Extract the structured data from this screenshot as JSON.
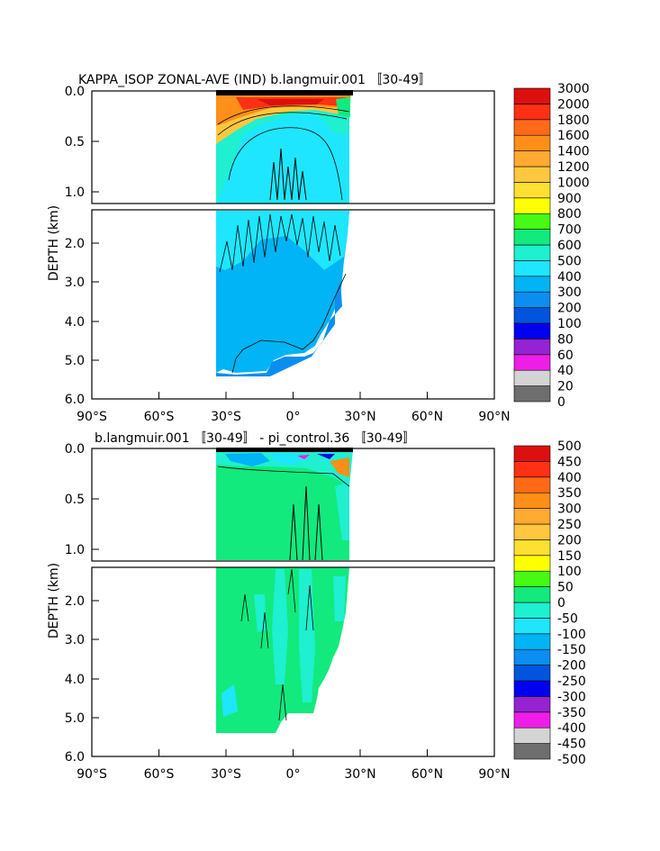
{
  "chart_data": [
    {
      "type": "heatmap",
      "title": "KAPPA_ISOP ZONAL-AVE (IND) b.langmuir.001 〚30-49〛",
      "ylabel": "DEPTH (km)",
      "x_ticks": [
        "90°S",
        "60°S",
        "30°S",
        "0°",
        "30°N",
        "60°N",
        "90°N"
      ],
      "x_range": [
        -90,
        90
      ],
      "y_ticks_upper": [
        "0.0",
        "0.5",
        "1.0"
      ],
      "y_ticks_lower": [
        "2.0",
        "3.0",
        "4.0",
        "5.0",
        "6.0"
      ],
      "y_range_upper_km": [
        0,
        1.15
      ],
      "y_range_lower_km": [
        1.15,
        6.0
      ],
      "colorbar": {
        "labels": [
          "0",
          "20",
          "40",
          "60",
          "80",
          "100",
          "200",
          "300",
          "400",
          "500",
          "600",
          "700",
          "800",
          "900",
          "1000",
          "1200",
          "1400",
          "1600",
          "1800",
          "2000",
          "3000"
        ],
        "colors": [
          "#6e6e6e",
          "#d4d4d4",
          "#ee1ee8",
          "#9622d2",
          "#0000f0",
          "#0055dd",
          "#0a8ef0",
          "#00b4f5",
          "#1ee6ff",
          "#1ef0d0",
          "#12ea7e",
          "#46fa14",
          "#ffff00",
          "#ffe030",
          "#ffc740",
          "#ffaa30",
          "#ff8f18",
          "#ff6a18",
          "#ff3014",
          "#dd1010"
        ]
      }
    },
    {
      "type": "heatmap",
      "title": "b.langmuir.001 〚30-49〛 - pi_control.36 〚30-49〛",
      "ylabel": "DEPTH (km)",
      "x_ticks": [
        "90°S",
        "60°S",
        "30°S",
        "0°",
        "30°N",
        "60°N",
        "90°N"
      ],
      "x_range": [
        -90,
        90
      ],
      "y_ticks_upper": [
        "0.0",
        "0.5",
        "1.0"
      ],
      "y_ticks_lower": [
        "2.0",
        "3.0",
        "4.0",
        "5.0",
        "6.0"
      ],
      "y_range_upper_km": [
        0,
        1.15
      ],
      "y_range_lower_km": [
        1.15,
        6.0
      ],
      "colorbar": {
        "labels": [
          "-500",
          "-450",
          "-400",
          "-350",
          "-300",
          "-250",
          "-200",
          "-150",
          "-100",
          "-50",
          "0",
          "50",
          "100",
          "150",
          "200",
          "250",
          "300",
          "350",
          "400",
          "450",
          "500"
        ],
        "colors": [
          "#6e6e6e",
          "#d4d4d4",
          "#ee1ee8",
          "#9622d2",
          "#0000f0",
          "#0055dd",
          "#0a8ef0",
          "#00b4f5",
          "#1ee6ff",
          "#1ef0d0",
          "#12ea7e",
          "#46fa14",
          "#ffff00",
          "#ffe030",
          "#ffc740",
          "#ffaa30",
          "#ff8f18",
          "#ff6a18",
          "#ff3014",
          "#dd1010"
        ]
      }
    }
  ]
}
